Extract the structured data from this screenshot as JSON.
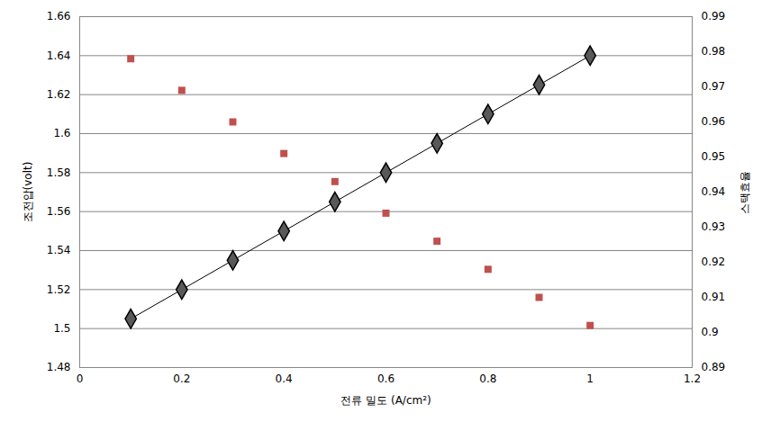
{
  "chart_data": {
    "type": "line",
    "x_label": "전류 밀도 (A/cm²)",
    "y_label": "조전압(volt)",
    "y2_label": "스택효율",
    "x": [
      0.1,
      0.2,
      0.3,
      0.4,
      0.5,
      0.6,
      0.7,
      0.8,
      0.9,
      1.0
    ],
    "series": [
      {
        "color": "#000000",
        "marker": "diamond",
        "line_style": "solid",
        "values": [
          1.505,
          1.52,
          1.535,
          1.55,
          1.565,
          1.58,
          1.595,
          1.61,
          1.625,
          1.64
        ]
      },
      {
        "type": "scatter",
        "axis": "y2",
        "color": "#c0504d",
        "marker": "square",
        "values": [
          0.978,
          0.969,
          0.96,
          0.951,
          0.943,
          0.934,
          0.926,
          0.918,
          0.91,
          0.902
        ]
      }
    ],
    "xlim": [
      0,
      1.2
    ],
    "xticks": [
      0,
      0.2,
      0.4,
      0.6,
      0.8,
      1,
      1.2
    ],
    "ylim": [
      1.48,
      1.66
    ],
    "yticks": [
      1.48,
      1.5,
      1.52,
      1.54,
      1.56,
      1.58,
      1.6,
      1.62,
      1.64,
      1.66
    ],
    "y2lim": [
      0.89,
      0.99
    ],
    "y2ticks": [
      0.89,
      0.9,
      0.91,
      0.92,
      0.93,
      0.94,
      0.95,
      0.96,
      0.97,
      0.98,
      0.99
    ],
    "grid": true
  }
}
